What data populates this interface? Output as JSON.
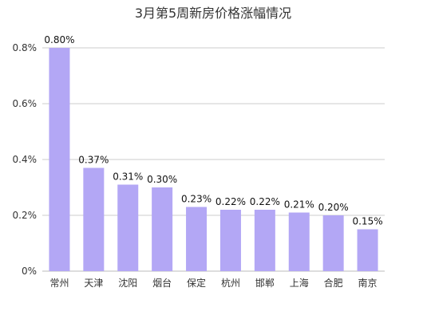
{
  "chart_data": {
    "type": "bar",
    "title": "3月第5周新房价格涨幅情况",
    "categories": [
      "常州",
      "天津",
      "沈阳",
      "烟台",
      "保定",
      "杭州",
      "邯郸",
      "上海",
      "合肥",
      "南京"
    ],
    "values": [
      0.8,
      0.37,
      0.31,
      0.3,
      0.23,
      0.22,
      0.22,
      0.21,
      0.2,
      0.15
    ],
    "data_labels": [
      "0.80%",
      "0.37%",
      "0.31%",
      "0.30%",
      "0.23%",
      "0.22%",
      "0.22%",
      "0.21%",
      "0.20%",
      "0.15%"
    ],
    "y_ticks": [
      0,
      0.2,
      0.4,
      0.6,
      0.8
    ],
    "y_tick_labels": [
      "0%",
      "0.2%",
      "0.4%",
      "0.6%",
      "0.8%"
    ],
    "ylim": [
      0,
      0.8
    ],
    "xlabel": "",
    "ylabel": "",
    "grid": true,
    "legend": "none",
    "bar_color": "#b3a7f5",
    "grid_color": "#cccccc"
  }
}
